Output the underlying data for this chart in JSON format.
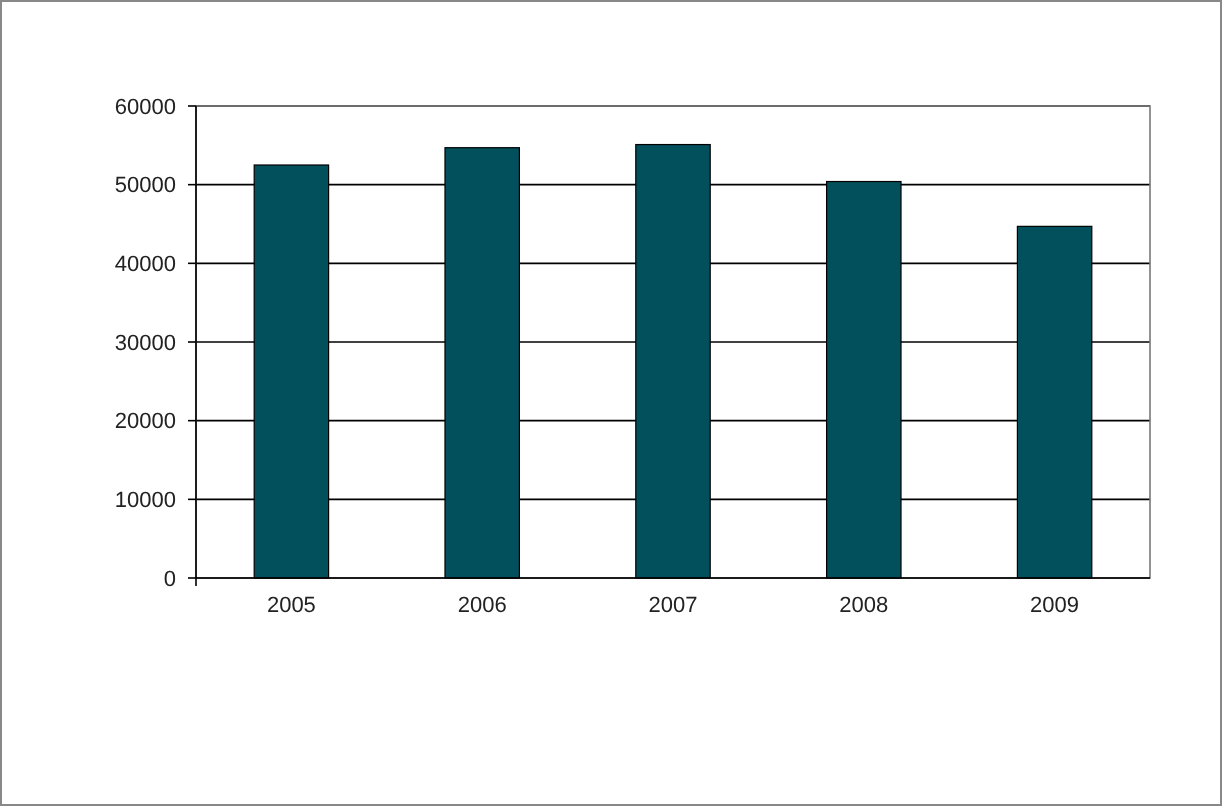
{
  "chart_data": {
    "type": "bar",
    "categories": [
      "2005",
      "2006",
      "2007",
      "2008",
      "2009"
    ],
    "values": [
      52500,
      54700,
      55100,
      50400,
      44700
    ],
    "color": "#02505c",
    "ylim": [
      0,
      60000
    ],
    "yticks": [
      0,
      10000,
      20000,
      30000,
      40000,
      50000,
      60000
    ],
    "grid": "y"
  }
}
